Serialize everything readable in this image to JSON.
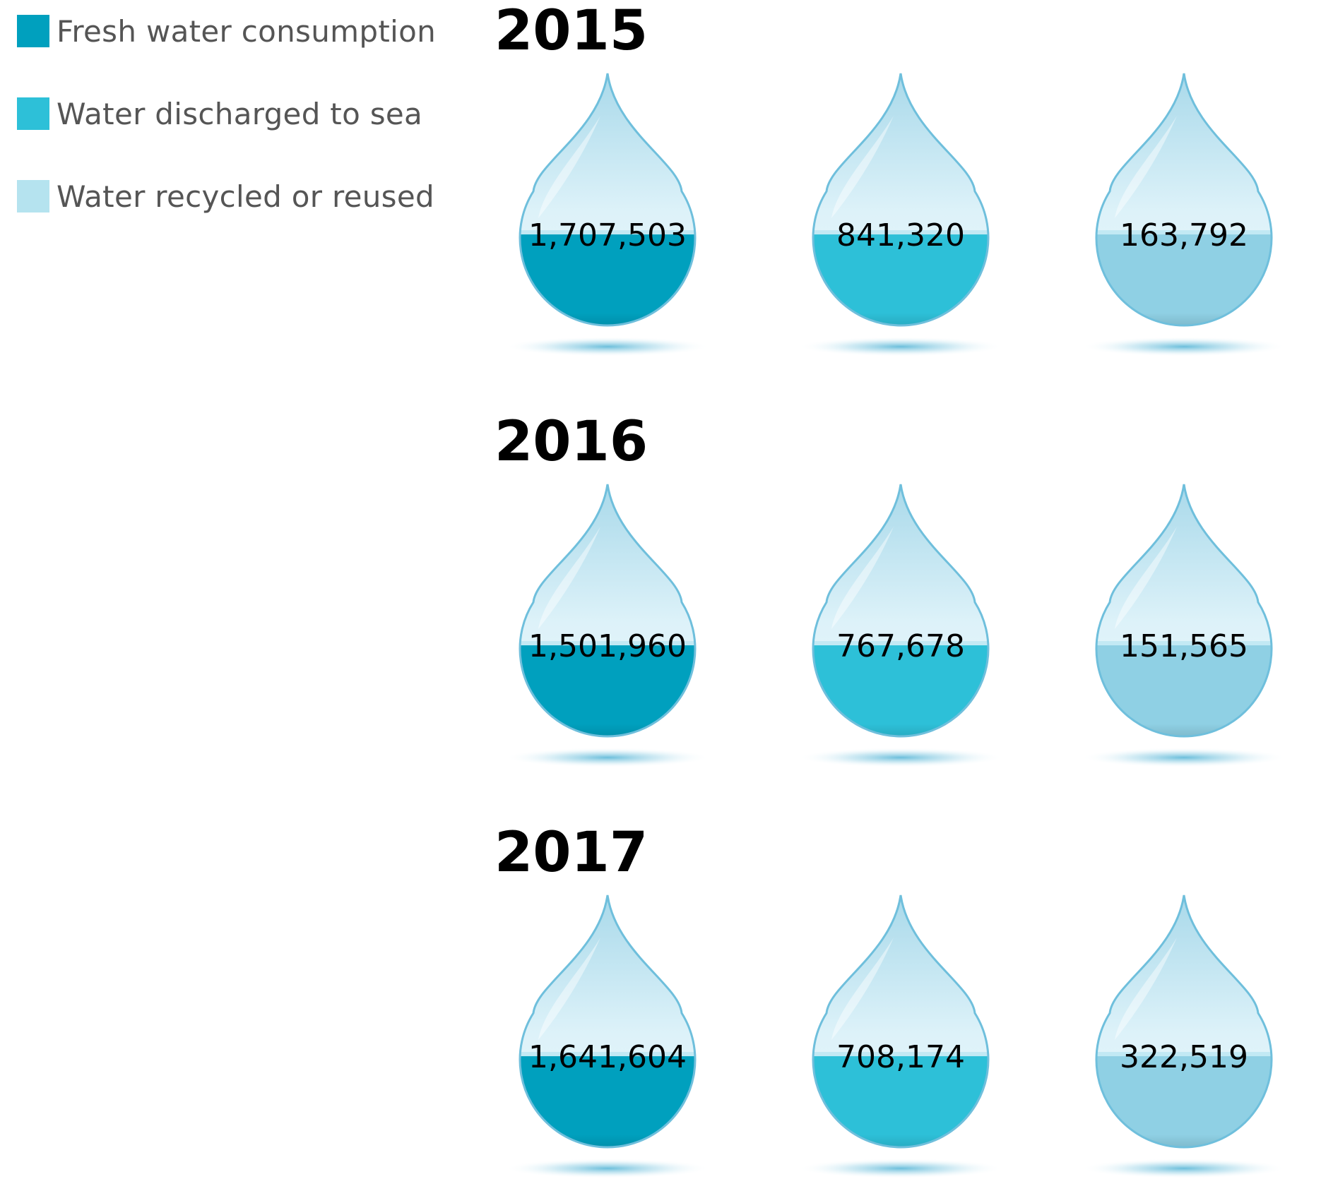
{
  "colors": {
    "fresh": "#00a0be",
    "sea": "#2dc0d8",
    "recycled": "#8fd0e4",
    "legend_recycled": "#b5e3ef"
  },
  "legend": [
    {
      "label": "Fresh water consumption",
      "color": "#00a0be"
    },
    {
      "label": "Water discharged to sea",
      "color": "#2dc0d8"
    },
    {
      "label": "Water recycled or reused",
      "color": "#b5e3ef"
    }
  ],
  "chart_data": {
    "type": "table",
    "title": "",
    "categories": [
      "Fresh water consumption",
      "Water discharged to sea",
      "Water recycled or reused"
    ],
    "x": [
      "2015",
      "2016",
      "2017"
    ],
    "series": [
      {
        "name": "2015",
        "values": [
          1707503,
          841320,
          163792
        ],
        "labels": [
          "1,707,503",
          "841,320",
          "163,792"
        ]
      },
      {
        "name": "2016",
        "values": [
          1501960,
          767678,
          151565
        ],
        "labels": [
          "1,501,960",
          "767,678",
          "151,565"
        ]
      },
      {
        "name": "2017",
        "values": [
          1641604,
          708174,
          322519
        ],
        "labels": [
          "1,641,604",
          "708,174",
          "322,519"
        ]
      }
    ]
  }
}
